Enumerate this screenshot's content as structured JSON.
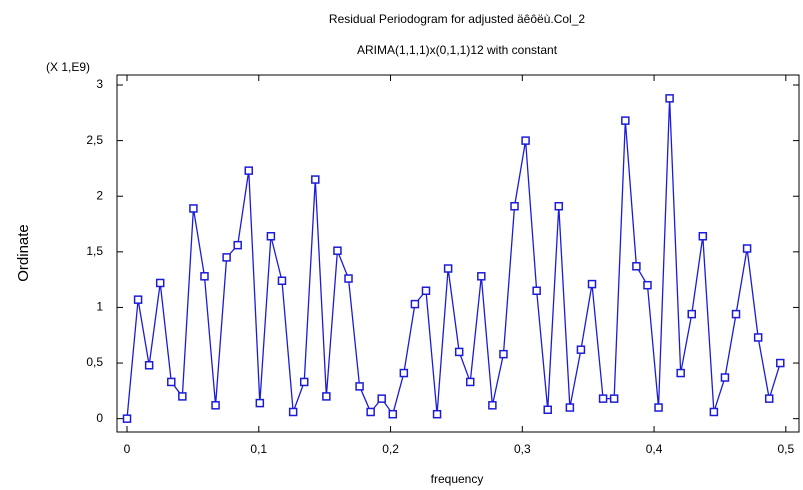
{
  "chart_data": {
    "type": "line",
    "title": "Residual Periodogram for adjusted äêôëù.Col_2",
    "subtitle": "ARIMA(1,1,1)x(0,1,1)12 with constant",
    "y_scale_note": "(X 1,E9)",
    "x_label": "frequency",
    "y_label": "Ordinate",
    "color": "#1c1cd8",
    "marker": "square",
    "x": [
      0,
      0.0084,
      0.0168,
      0.0252,
      0.0336,
      0.042,
      0.0504,
      0.0588,
      0.0672,
      0.0756,
      0.084,
      0.0924,
      0.1008,
      0.1092,
      0.1176,
      0.1261,
      0.1345,
      0.1429,
      0.1513,
      0.1597,
      0.1681,
      0.1765,
      0.1849,
      0.1933,
      0.2017,
      0.2101,
      0.2185,
      0.2269,
      0.2353,
      0.2437,
      0.2521,
      0.2605,
      0.2689,
      0.2773,
      0.2857,
      0.2941,
      0.3025,
      0.3109,
      0.3193,
      0.3277,
      0.3361,
      0.3445,
      0.3529,
      0.3613,
      0.3697,
      0.3782,
      0.3866,
      0.395,
      0.4034,
      0.4118,
      0.4202,
      0.4286,
      0.437,
      0.4454,
      0.4538,
      0.4622,
      0.4706,
      0.479,
      0.4874,
      0.4958
    ],
    "values": [
      0,
      1.07,
      0.48,
      1.22,
      0.33,
      0.2,
      1.89,
      1.28,
      0.12,
      1.45,
      1.56,
      2.23,
      0.14,
      1.64,
      1.24,
      0.06,
      0.33,
      2.15,
      0.2,
      1.51,
      1.26,
      0.29,
      0.06,
      0.18,
      0.04,
      0.41,
      1.03,
      1.15,
      0.04,
      1.35,
      0.6,
      0.33,
      1.28,
      0.12,
      0.58,
      1.91,
      2.5,
      1.15,
      0.08,
      1.91,
      0.1,
      0.62,
      1.21,
      0.18,
      0.18,
      2.68,
      1.37,
      1.2,
      0.1,
      2.88,
      0.41,
      0.94,
      1.64,
      0.06,
      0.37,
      0.94,
      1.53,
      0.73,
      0.18,
      0.5
    ],
    "xlim": [
      -0.0076,
      0.51
    ],
    "ylim": [
      -0.12,
      3.09
    ],
    "xticks": [
      0,
      {
        "value": 0.1,
        "label": "0,1"
      },
      {
        "value": 0.2,
        "label": "0,2"
      },
      {
        "value": 0.3,
        "label": "0,3"
      },
      {
        "value": 0.4,
        "label": "0,4"
      },
      {
        "value": 0.5,
        "label": "0,5"
      }
    ],
    "yticks": [
      0,
      {
        "value": 0.5,
        "label": "0,5"
      },
      1,
      {
        "value": 1.5,
        "label": "1,5"
      },
      2,
      {
        "value": 2.5,
        "label": "2,5"
      },
      3
    ]
  }
}
